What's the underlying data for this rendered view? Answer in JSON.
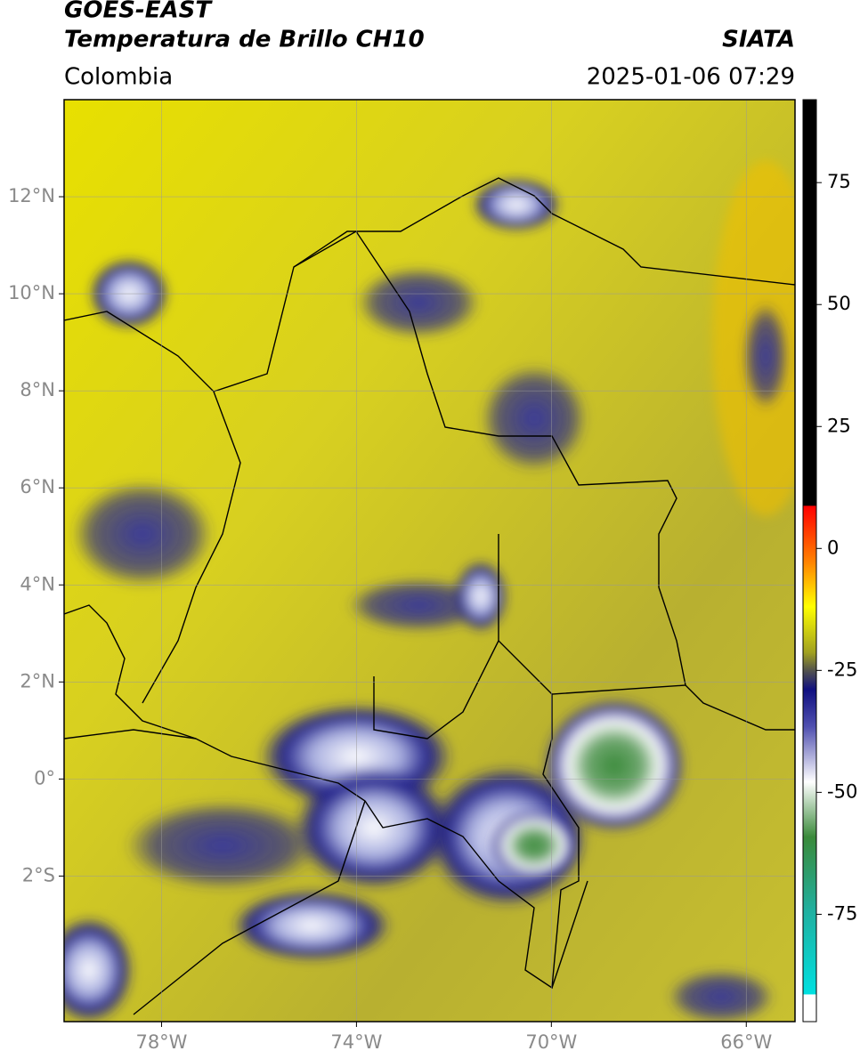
{
  "header": {
    "title": "GOES-EAST",
    "subtitle": "Temperatura de Brillo CH10",
    "source": "SIATA",
    "region": "Colombia",
    "datetime": "2025-01-06 07:29"
  },
  "map": {
    "xlim": [
      -80,
      -65
    ],
    "ylim": [
      -5,
      14
    ],
    "xticks": [
      {
        "value": -78,
        "label": "78°W"
      },
      {
        "value": -74,
        "label": "74°W"
      },
      {
        "value": -70,
        "label": "70°W"
      },
      {
        "value": -66,
        "label": "66°W"
      }
    ],
    "yticks": [
      {
        "value": 12,
        "label": "12°N"
      },
      {
        "value": 10,
        "label": "10°N"
      },
      {
        "value": 8,
        "label": "8°N"
      },
      {
        "value": 6,
        "label": "6°N"
      },
      {
        "value": 4,
        "label": "4°N"
      },
      {
        "value": 2,
        "label": "2°N"
      },
      {
        "value": 0,
        "label": "0°"
      },
      {
        "value": -2,
        "label": "2°S"
      }
    ],
    "grid": true
  },
  "colorbar": {
    "lim": [
      -97,
      92
    ],
    "ticks": [
      75,
      50,
      25,
      0,
      -25,
      -50,
      -75
    ]
  }
}
